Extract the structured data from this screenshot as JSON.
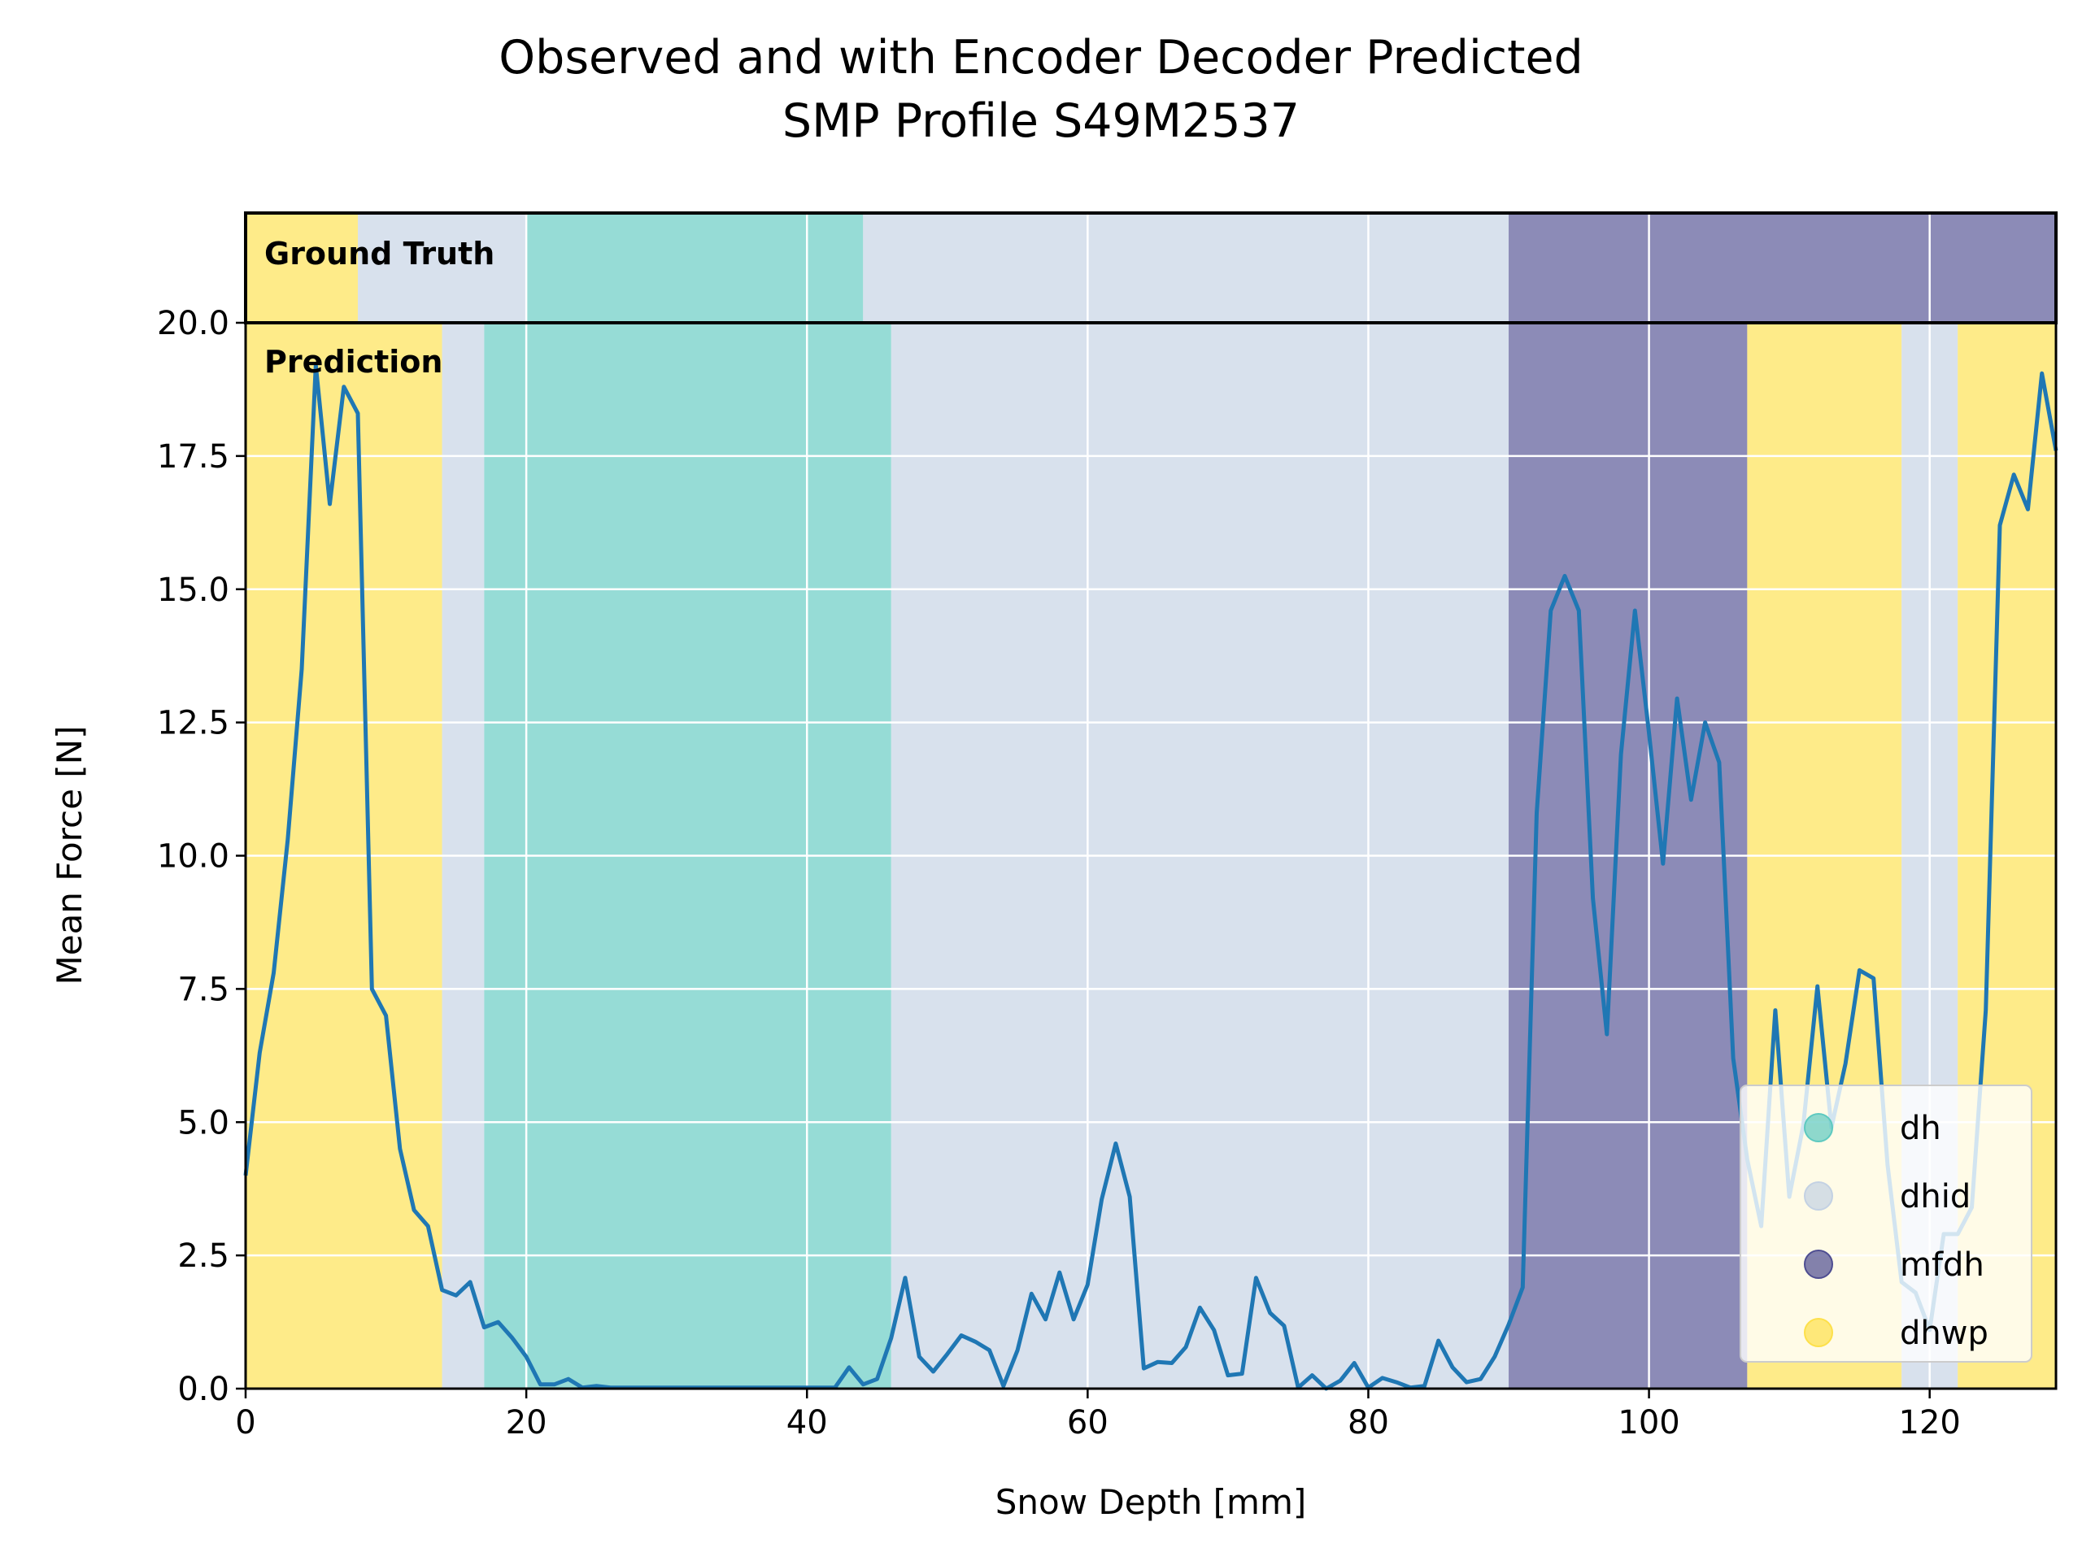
{
  "chart_data": {
    "type": "line",
    "title_line1": "Observed and with Encoder Decoder Predicted",
    "title_line2": "SMP Profile S49M2537",
    "xlabel": "Snow Depth [mm]",
    "ylabel": "Mean Force [N]",
    "xlim": [
      0,
      129
    ],
    "ylim": [
      0,
      20
    ],
    "xticks": [
      0,
      20,
      40,
      60,
      80,
      100,
      120
    ],
    "xtick_labels": [
      "0",
      "20",
      "40",
      "60",
      "80",
      "100",
      "120"
    ],
    "yticks": [
      0,
      2.5,
      5,
      7.5,
      10,
      12.5,
      15,
      17.5,
      20
    ],
    "ytick_labels": [
      "0.0",
      "2.5",
      "5.0",
      "7.5",
      "10.0",
      "12.5",
      "15.0",
      "17.5",
      "20.0"
    ],
    "grid": true,
    "ground_truth_label": "Ground Truth",
    "prediction_label": "Prediction",
    "classes": [
      {
        "name": "dh",
        "color": "#5ec9c0"
      },
      {
        "name": "dhid",
        "color": "#c3d1e3"
      },
      {
        "name": "mfdh",
        "color": "#4e4d91"
      },
      {
        "name": "dhwp",
        "color": "#fde04a"
      }
    ],
    "ground_truth_segments": [
      {
        "start": 0,
        "end": 8,
        "class": "dhwp"
      },
      {
        "start": 8,
        "end": 20,
        "class": "dhid"
      },
      {
        "start": 20,
        "end": 44,
        "class": "dh"
      },
      {
        "start": 44,
        "end": 90,
        "class": "dhid"
      },
      {
        "start": 90,
        "end": 129,
        "class": "mfdh"
      }
    ],
    "prediction_segments": [
      {
        "start": 0,
        "end": 14,
        "class": "dhwp"
      },
      {
        "start": 14,
        "end": 17,
        "class": "dhid"
      },
      {
        "start": 17,
        "end": 46,
        "class": "dh"
      },
      {
        "start": 46,
        "end": 90,
        "class": "dhid"
      },
      {
        "start": 90,
        "end": 107,
        "class": "mfdh"
      },
      {
        "start": 107,
        "end": 118,
        "class": "dhwp"
      },
      {
        "start": 118,
        "end": 122,
        "class": "dhid"
      },
      {
        "start": 122,
        "end": 129,
        "class": "dhwp"
      }
    ],
    "series": [
      {
        "name": "Mean Force",
        "color": "#1f77b4",
        "x": [
          0,
          1,
          2,
          3,
          4,
          5,
          6,
          7,
          8,
          9,
          10,
          11,
          12,
          13,
          14,
          15,
          16,
          17,
          18,
          19,
          20,
          21,
          22,
          23,
          24,
          25,
          26,
          27,
          28,
          29,
          30,
          31,
          32,
          33,
          34,
          35,
          36,
          37,
          38,
          39,
          40,
          41,
          42,
          43,
          44,
          45,
          46,
          47,
          48,
          49,
          50,
          51,
          52,
          53,
          54,
          55,
          56,
          57,
          58,
          59,
          60,
          61,
          62,
          63,
          64,
          65,
          66,
          67,
          68,
          69,
          70,
          71,
          72,
          73,
          74,
          75,
          76,
          77,
          78,
          79,
          80,
          81,
          82,
          83,
          84,
          85,
          86,
          87,
          88,
          89,
          90,
          91,
          92,
          93,
          94,
          95,
          96,
          97,
          98,
          99,
          100,
          101,
          102,
          103,
          104,
          105,
          106,
          107,
          108,
          109,
          110,
          111,
          112,
          113,
          114,
          115,
          116,
          117,
          118,
          119,
          120,
          121,
          122,
          123,
          124,
          125,
          126,
          127,
          128,
          129
        ],
        "y": [
          4.0,
          6.3,
          7.8,
          10.3,
          13.5,
          19.2,
          16.6,
          18.8,
          18.3,
          7.5,
          7.0,
          4.5,
          3.35,
          3.05,
          1.85,
          1.75,
          2.0,
          1.15,
          1.25,
          0.95,
          0.6,
          0.08,
          0.08,
          0.18,
          0.02,
          0.05,
          0.02,
          0.02,
          0.02,
          0.02,
          0.02,
          0.02,
          0.02,
          0.02,
          0.02,
          0.02,
          0.02,
          0.02,
          0.02,
          0.02,
          0.02,
          0.02,
          0.02,
          0.4,
          0.08,
          0.18,
          0.95,
          2.08,
          0.6,
          0.32,
          0.65,
          1.0,
          0.88,
          0.72,
          0.05,
          0.72,
          1.78,
          1.3,
          2.18,
          1.3,
          1.95,
          3.55,
          4.6,
          3.6,
          0.38,
          0.5,
          0.48,
          0.78,
          1.52,
          1.1,
          0.25,
          0.28,
          2.08,
          1.42,
          1.18,
          0.02,
          0.25,
          0.0,
          0.15,
          0.48,
          0.02,
          0.2,
          0.12,
          0.02,
          0.05,
          0.9,
          0.4,
          0.12,
          0.18,
          0.6,
          1.2,
          1.9,
          10.8,
          14.6,
          15.25,
          14.6,
          9.2,
          6.65,
          11.9,
          14.6,
          12.3,
          9.85,
          12.95,
          11.05,
          12.5,
          11.75,
          6.2,
          4.3,
          3.05,
          7.1,
          3.6,
          4.95,
          7.55,
          4.9,
          6.1,
          7.85,
          7.7,
          4.2,
          2.0,
          1.8,
          1.1,
          2.9,
          2.9,
          3.4,
          7.1,
          16.2,
          17.15,
          16.5,
          19.05,
          17.6
        ]
      }
    ]
  }
}
